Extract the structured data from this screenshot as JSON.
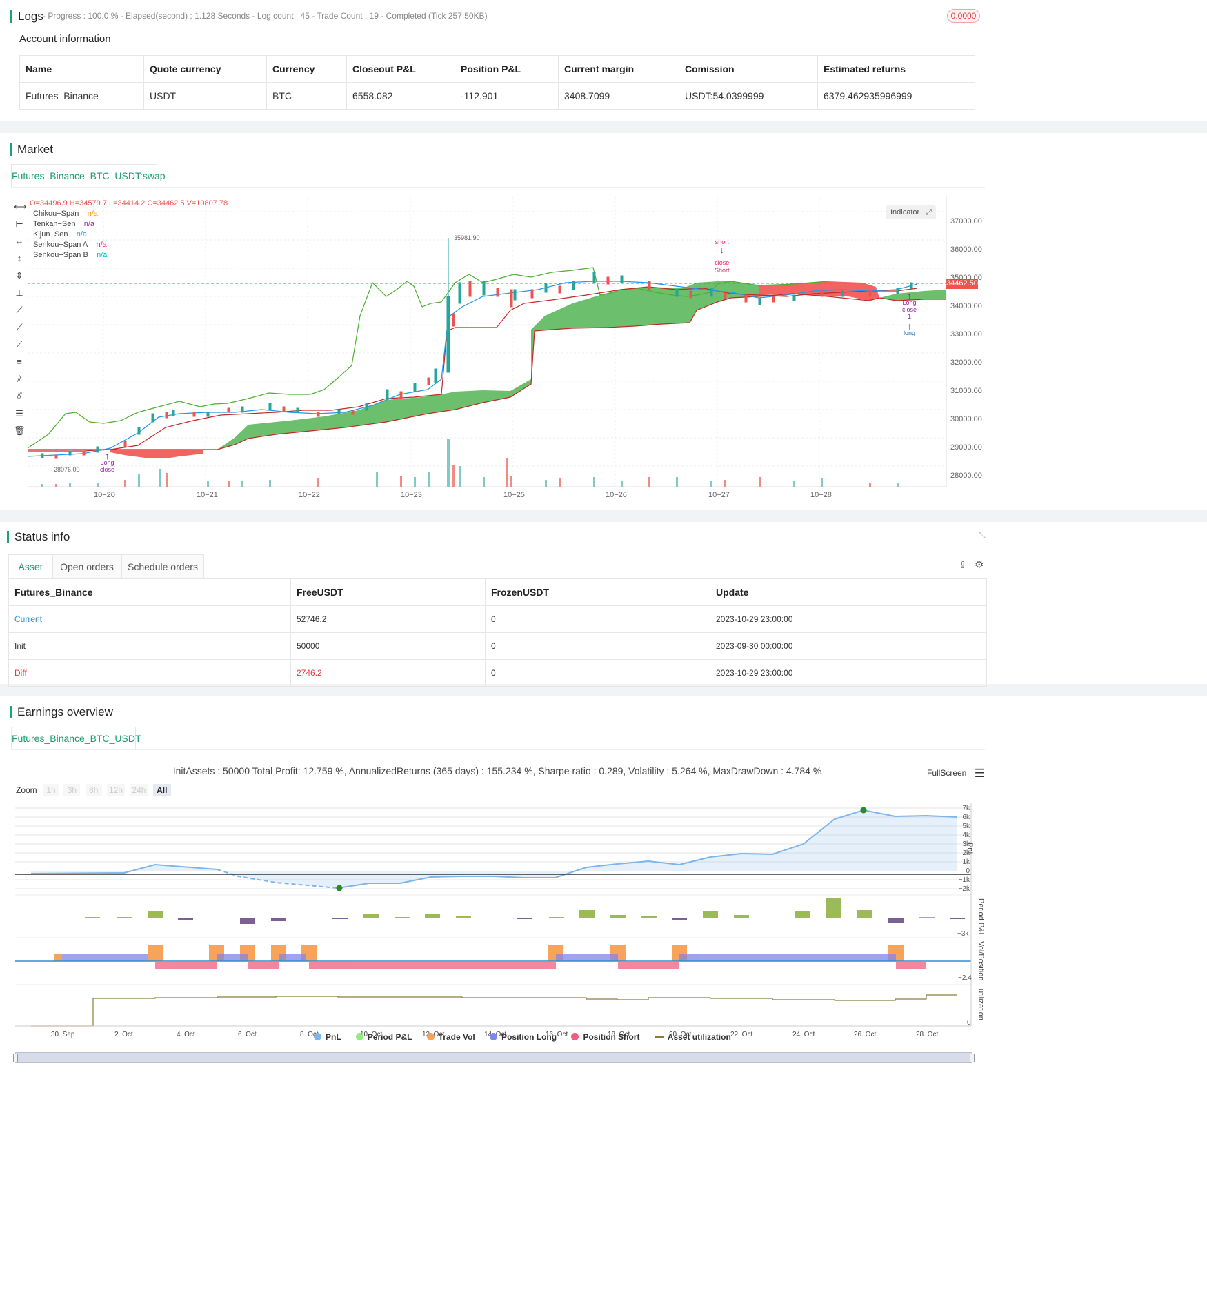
{
  "logs": {
    "title": "Logs",
    "status": "- Progress : 100.0 % - Elapsed(second) : 1.128  Seconds - Log count : 45 - Trade Count : 19 - Completed (Tick 257.50KB)",
    "badge": "0.0000"
  },
  "account": {
    "title": "Account information",
    "headers": [
      "Name",
      "Quote currency",
      "Currency",
      "Closeout P&L",
      "Position P&L",
      "Current margin",
      "Comission",
      "Estimated returns"
    ],
    "row": [
      "Futures_Binance",
      "USDT",
      "BTC",
      "6558.082",
      "-112.901",
      "3408.7099",
      "USDT:54.0399999",
      "6379.462935996999"
    ]
  },
  "market": {
    "title": "Market",
    "tab": "Futures_Binance_BTC_USDT:swap",
    "ohlc": "O=34496.9 H=34579.7 L=34414.2 C=34462.5 V=10807.78",
    "legend": [
      {
        "name": "Chikou−Span",
        "val": "n/a",
        "color": "#ff9800"
      },
      {
        "name": "Tenkan−Sen",
        "val": "n/a",
        "color": "#9c27b0"
      },
      {
        "name": "Kijun−Sen",
        "val": "n/a",
        "color": "#2196f3"
      },
      {
        "name": "Senkou−Span A",
        "val": "n/a",
        "color": "#e91e63"
      },
      {
        "name": "Senkou−Span B",
        "val": "n/a",
        "color": "#00bcd4"
      }
    ],
    "indicator_btn": "Indicator",
    "last_price": "34462.50",
    "high_mark": "35981.90",
    "low_mark": "28076.00",
    "y_ticks": [
      "37000.00",
      "36000.00",
      "35000.00",
      "34000.00",
      "33000.00",
      "32000.00",
      "31000.00",
      "30000.00",
      "29000.00",
      "28000.00"
    ],
    "x_ticks": [
      "10−20",
      "10−21",
      "10−22",
      "10−23",
      "10−25",
      "10−26",
      "10−27",
      "10−28"
    ],
    "markers": {
      "short": "short",
      "close_short": "close",
      "short2": "Short",
      "long_a": "Long",
      "close_a": "close",
      "long_b": "Long",
      "close_b": "close",
      "one": "1",
      "long_c": "long"
    }
  },
  "status": {
    "title": "Status info",
    "tabs": [
      "Asset",
      "Open orders",
      "Schedule orders"
    ],
    "headers": [
      "Futures_Binance",
      "FreeUSDT",
      "FrozenUSDT",
      "Update"
    ],
    "rows": [
      [
        "Current",
        "52746.2",
        "0",
        "2023-10-29 23:00:00"
      ],
      [
        "Init",
        "50000",
        "0",
        "2023-09-30 00:00:00"
      ],
      [
        "Diff",
        "2746.2",
        "0",
        "2023-10-29 23:00:00"
      ]
    ]
  },
  "earnings": {
    "title": "Earnings overview",
    "tab": "Futures_Binance_BTC_USDT",
    "summary": "InitAssets : 50000 Total Profit: 12.759 %, AnnualizedReturns (365 days) : 155.234 %, Sharpe ratio : 0.289, Volatility : 5.264 %, MaxDrawDown : 4.784 %",
    "fullscreen": "FullScreen",
    "zoom_label": "Zoom",
    "zoom": [
      "1h",
      "3h",
      "8h",
      "12h",
      "24h",
      "All"
    ],
    "pnl_ticks": [
      "7k",
      "6k",
      "5k",
      "4k",
      "3k",
      "2k",
      "1k",
      "0",
      "−1k",
      "−2k"
    ],
    "axis_titles": [
      "PnL",
      "Period P&L",
      "Vol/Position",
      "utilization"
    ],
    "ppl_tick": "−3k",
    "vol_tick": "−2.4",
    "util_tick": "0",
    "x_ticks": [
      "30. Sep",
      "2. Oct",
      "4. Oct",
      "6. Oct",
      "8. Oct",
      "10. Oct",
      "12. Oct",
      "14. Oct",
      "16. Oct",
      "18. Oct",
      "20. Oct",
      "22. Oct",
      "24. Oct",
      "26. Oct",
      "28. Oct"
    ],
    "legend": [
      {
        "name": "PnL",
        "color": "#7cb5ec"
      },
      {
        "name": "Period P&L",
        "color": "#90ed7d"
      },
      {
        "name": "Trade Vol",
        "color": "#f7a35c"
      },
      {
        "name": "Position Long",
        "color": "#8085e9"
      },
      {
        "name": "Position Short",
        "color": "#f15c80"
      },
      {
        "name": "Asset utilization",
        "color": "#8b7d3a"
      }
    ]
  },
  "chart_data": [
    {
      "type": "line",
      "name": "PnL",
      "x": [
        "30. Sep",
        "2. Oct",
        "4. Oct",
        "6. Oct",
        "8. Oct",
        "10. Oct",
        "12. Oct",
        "14. Oct",
        "16. Oct",
        "18. Oct",
        "20. Oct",
        "22. Oct",
        "24. Oct",
        "26. Oct",
        "28. Oct"
      ],
      "values": [
        0,
        100,
        0,
        -1500,
        -2000,
        -1000,
        -400,
        -400,
        400,
        1200,
        1200,
        2200,
        2200,
        6800,
        6200
      ],
      "ylim": [
        -2500,
        7500
      ]
    }
  ]
}
